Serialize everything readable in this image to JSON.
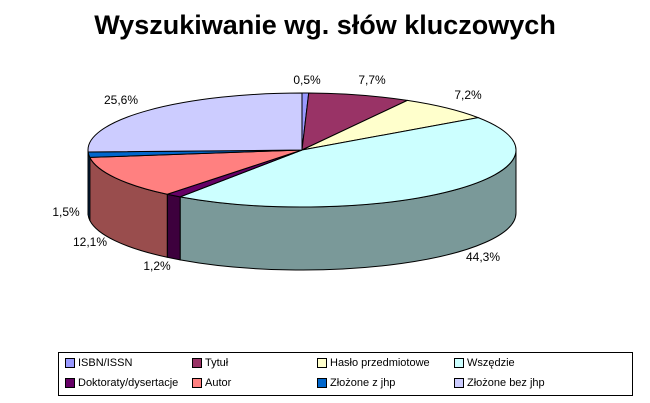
{
  "chart_data": {
    "type": "pie",
    "title": "Wyszukiwanie wg. słów kluczowych",
    "slices": [
      {
        "name": "ISBN/ISSN",
        "value": 0.5,
        "label": "0,5%",
        "color": "#9999ff",
        "side": "#5c5c99"
      },
      {
        "name": "Tytuł",
        "value": 7.7,
        "label": "7,7%",
        "color": "#993366",
        "side": "#5c1f3d"
      },
      {
        "name": "Hasło przedmiotowe",
        "value": 7.2,
        "label": "7,2%",
        "color": "#ffffcc",
        "side": "#99997a"
      },
      {
        "name": "Wszędzie",
        "value": 44.3,
        "label": "44,3%",
        "color": "#ccffff",
        "side": "#7a9999"
      },
      {
        "name": "Doktoraty/dysertacje",
        "value": 1.2,
        "label": "1,2%",
        "color": "#660066",
        "side": "#3d003d"
      },
      {
        "name": "Autor",
        "value": 12.1,
        "label": "12,1%",
        "color": "#ff8080",
        "side": "#994d4d"
      },
      {
        "name": "Złożone z jhp",
        "value": 1.5,
        "label": "1,5%",
        "color": "#0066cc",
        "side": "#003d7a"
      },
      {
        "name": "Złożone bez jhp",
        "value": 25.6,
        "label": "25,6%",
        "color": "#ccccff",
        "side": "#7a7a99"
      }
    ],
    "legend_position": "bottom",
    "legend_order": [
      "ISBN/ISSN",
      "Tytuł",
      "Hasło przedmiotowe",
      "Wszędzie",
      "Doktoraty/dysertacje",
      "Autor",
      "Złożone z jhp",
      "Złożone bez jhp"
    ]
  }
}
